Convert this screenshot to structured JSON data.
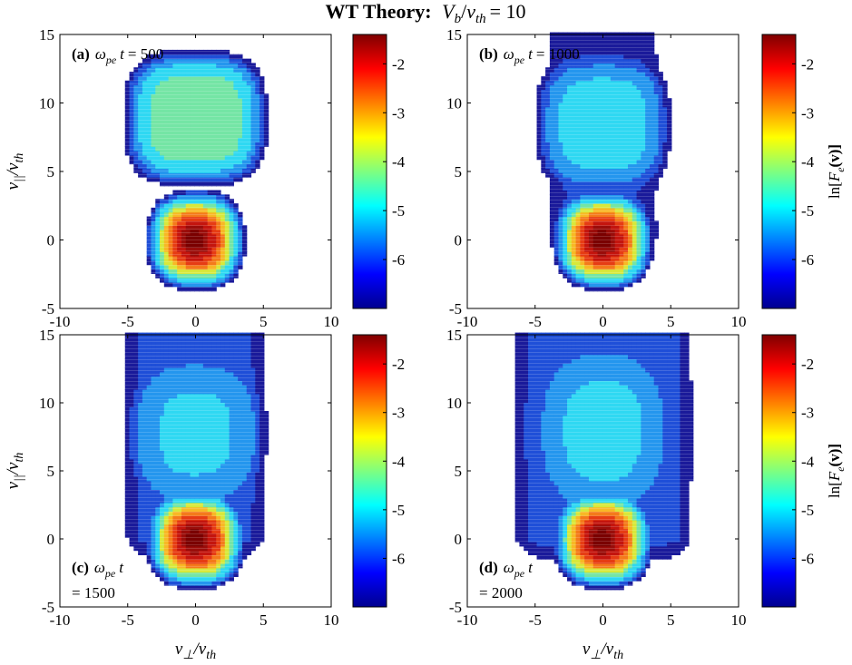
{
  "chart_data": {
    "type": "contour",
    "title": {
      "prefix": "WT Theory:",
      "vb": "V",
      "vb_sub": "b",
      "vth": "v",
      "vth_sub": "th",
      "eq": "= 10"
    },
    "xlabel": {
      "v": "v",
      "sub": "⊥",
      "th": "v",
      "th_sub": "th"
    },
    "ylabel": {
      "v": "v",
      "sub": "||",
      "th": "v",
      "th_sub": "th"
    },
    "xlim": [
      -10,
      10
    ],
    "ylim": [
      -5,
      15
    ],
    "xticks": [
      -10,
      -5,
      0,
      5,
      10
    ],
    "yticks": [
      -5,
      0,
      5,
      10,
      15
    ],
    "colorbar": {
      "label_prefix": "ln[",
      "label_F": "F",
      "label_sub": "e",
      "label_v": "(v)]",
      "range": [
        -7,
        -1.4
      ],
      "ticks": [
        -2,
        -3,
        -4,
        -5,
        -6
      ]
    },
    "panels": [
      {
        "id": "a",
        "tag": "(a)",
        "omega": "ω",
        "omega_sub": "pe",
        "t": "t",
        "value": "= 500",
        "time": 500
      },
      {
        "id": "b",
        "tag": "(b)",
        "omega": "ω",
        "omega_sub": "pe",
        "t": "t",
        "value": "= 1000",
        "time": 1000
      },
      {
        "id": "c",
        "tag": "(c)",
        "omega": "ω",
        "omega_sub": "pe",
        "t": "t",
        "value": "= 1500",
        "time": 1500
      },
      {
        "id": "d",
        "tag": "(d)",
        "omega": "ω",
        "omega_sub": "pe",
        "t": "t",
        "value": "= 2000",
        "time": 2000
      }
    ],
    "contour_levels": [
      -6.6,
      -6.1,
      -5.6,
      -5.05,
      -4.4,
      -3.9,
      -3.4,
      -3.0,
      -2.6,
      -2.2,
      -1.85,
      -1.6
    ],
    "colors": {
      "level_colors": [
        "#1a1a9a",
        "#1f4fd8",
        "#2496ee",
        "#2fd8f2",
        "#74e5a5",
        "#d8e83a",
        "#f8b825",
        "#f47a1b",
        "#e63c14",
        "#c4150e",
        "#9a0d0a",
        "#7a0000"
      ]
    }
  }
}
